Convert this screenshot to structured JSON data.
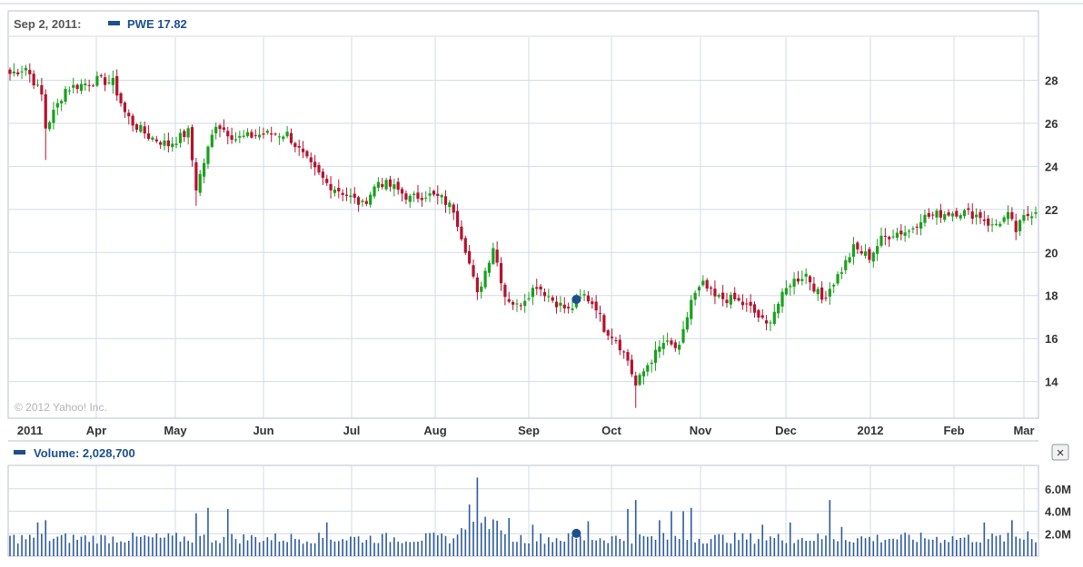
{
  "colors": {
    "up": "#19a01e",
    "down": "#b5122e",
    "accent": "#1d4f8e",
    "grid": "#d3dbe6",
    "border": "#b8c2cf",
    "volume": "#2c5a9e",
    "label": "#333333",
    "watermark": "#b3b3b3"
  },
  "legend": {
    "date": "Sep 2, 2011:",
    "symbol": "PWE",
    "price": "17.82"
  },
  "watermark": "© 2012 Yahoo! Inc.",
  "volume_legend": {
    "label": "Volume: 2,028,700"
  },
  "close_button": {
    "icon": "close-icon",
    "glyph": "×"
  },
  "chart_data": [
    {
      "type": "candlestick",
      "symbol": "PWE",
      "ylim": [
        12.3,
        30
      ],
      "y_ticks": [
        "28",
        "26",
        "24",
        "22",
        "20",
        "18",
        "16",
        "14"
      ],
      "x_ticks": [
        "2011",
        "Apr",
        "May",
        "Jun",
        "Jul",
        "Aug",
        "Sep",
        "Oct",
        "Nov",
        "Dec",
        "2012",
        "Feb",
        "Mar"
      ],
      "marker": {
        "date": "Sep 2, 2011",
        "value": 17.82
      },
      "anchors": [
        [
          0,
          28.3
        ],
        [
          4,
          28.6
        ],
        [
          8,
          27.3
        ],
        [
          9,
          25.8
        ],
        [
          11,
          26.5
        ],
        [
          14,
          27.6
        ],
        [
          18,
          27.8
        ],
        [
          22,
          28.0
        ],
        [
          26,
          27.9
        ],
        [
          29,
          26.5
        ],
        [
          31,
          26.0
        ],
        [
          35,
          25.4
        ],
        [
          40,
          25.0
        ],
        [
          45,
          25.6
        ],
        [
          47,
          23.0
        ],
        [
          52,
          26.0
        ],
        [
          57,
          25.3
        ],
        [
          64,
          25.5
        ],
        [
          70,
          25.5
        ],
        [
          76,
          24.0
        ],
        [
          80,
          23.2
        ],
        [
          84,
          22.8
        ],
        [
          89,
          22.2
        ],
        [
          93,
          23.3
        ],
        [
          97,
          23.0
        ],
        [
          101,
          22.5
        ],
        [
          105,
          22.7
        ],
        [
          109,
          22.5
        ],
        [
          112,
          22.0
        ],
        [
          115,
          20.2
        ],
        [
          118,
          18.0
        ],
        [
          122,
          20.3
        ],
        [
          125,
          18.0
        ],
        [
          128,
          17.5
        ],
        [
          133,
          18.5
        ],
        [
          137,
          17.8
        ],
        [
          141,
          17.3
        ],
        [
          145,
          18.0
        ],
        [
          148,
          17.5
        ],
        [
          150,
          16.5
        ],
        [
          153,
          16.0
        ],
        [
          156,
          15.0
        ],
        [
          158,
          13.8
        ],
        [
          161,
          14.8
        ],
        [
          165,
          15.8
        ],
        [
          169,
          15.5
        ],
        [
          172,
          17.8
        ],
        [
          175,
          18.5
        ],
        [
          178,
          17.9
        ],
        [
          183,
          17.8
        ],
        [
          187,
          17.4
        ],
        [
          191,
          16.6
        ],
        [
          193,
          17.3
        ],
        [
          197,
          18.6
        ],
        [
          201,
          19.0
        ],
        [
          205,
          17.8
        ],
        [
          210,
          19.2
        ],
        [
          213,
          20.2
        ],
        [
          217,
          19.8
        ],
        [
          220,
          20.6
        ],
        [
          223,
          20.9
        ],
        [
          227,
          21.0
        ],
        [
          230,
          21.6
        ],
        [
          235,
          21.8
        ],
        [
          240,
          21.9
        ],
        [
          245,
          21.7
        ],
        [
          248,
          21.2
        ],
        [
          252,
          21.7
        ],
        [
          254,
          21.0
        ],
        [
          256,
          21.6
        ],
        [
          259,
          22.0
        ]
      ]
    },
    {
      "type": "bar",
      "name": "Volume",
      "ylim": [
        0,
        8000000
      ],
      "y_ticks": [
        "6.0M",
        "4.0M",
        "2.0M"
      ],
      "y_tick_values": [
        6000000,
        4000000,
        2000000
      ],
      "latest": 2028700,
      "peaks": [
        [
          7,
          3.0
        ],
        [
          9,
          3.2
        ],
        [
          47,
          3.8
        ],
        [
          50,
          4.3
        ],
        [
          55,
          4.2
        ],
        [
          80,
          3.0
        ],
        [
          116,
          4.6
        ],
        [
          118,
          7.0
        ],
        [
          120,
          3.5
        ],
        [
          126,
          3.4
        ],
        [
          132,
          2.8
        ],
        [
          146,
          3.1
        ],
        [
          156,
          4.2
        ],
        [
          158,
          5.0
        ],
        [
          164,
          3.2
        ],
        [
          167,
          4.0
        ],
        [
          170,
          4.0
        ],
        [
          172,
          4.3
        ],
        [
          190,
          2.8
        ],
        [
          197,
          3.0
        ],
        [
          207,
          5.0
        ],
        [
          210,
          2.6
        ],
        [
          246,
          3.0
        ],
        [
          253,
          3.2
        ],
        [
          257,
          2.2
        ]
      ]
    }
  ]
}
